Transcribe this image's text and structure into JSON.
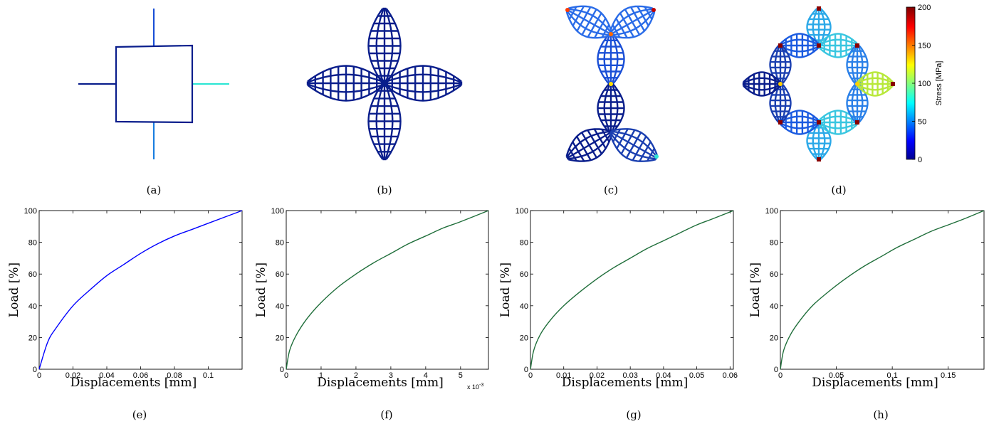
{
  "panel_labels": [
    "(a)",
    "(b)",
    "(c)",
    "(d)",
    "(e)",
    "(f)",
    "(g)",
    "(h)"
  ],
  "colorbar": {
    "label": "Stress [MPa]",
    "ticks": [
      "0",
      "50",
      "100",
      "150",
      "200"
    ],
    "colormap": [
      "#00008f",
      "#0000ff",
      "#00ffff",
      "#ffff00",
      "#ff0000",
      "#800000"
    ]
  },
  "colors": {
    "structure": "#0a1e8c",
    "curve_e": "#0000ff",
    "curve_fgh": "#1f6e3a"
  },
  "chart_data": [
    {
      "type": "line",
      "panel": "(e)",
      "xlabel": "Displacements [mm]",
      "ylabel": "Load [%]",
      "xlim": [
        0,
        0.12
      ],
      "ylim": [
        0,
        100
      ],
      "xticks": [
        0,
        0.02,
        0.04,
        0.06,
        0.08,
        0.1
      ],
      "xticklabels": [
        "0",
        "0.02",
        "0.04",
        "0.06",
        "0.08",
        "0.1"
      ],
      "yticks": [
        0,
        20,
        40,
        60,
        80,
        100
      ],
      "yticklabels": [
        "0",
        "20",
        "40",
        "60",
        "80",
        "100"
      ],
      "series": [
        {
          "values_x": [
            0,
            0.005,
            0.01,
            0.02,
            0.03,
            0.04,
            0.05,
            0.06,
            0.07,
            0.08,
            0.09,
            0.1,
            0.11,
            0.12
          ],
          "values_y": [
            0,
            17,
            26,
            40,
            50,
            59,
            66,
            73,
            79,
            84,
            88,
            92,
            96,
            100
          ]
        }
      ]
    },
    {
      "type": "line",
      "panel": "(f)",
      "xlabel": "Displacements [mm]",
      "ylabel": "Load [%]",
      "x_multiplier": "x 10",
      "x_multiplier_exp": "-3",
      "xlim": [
        0,
        5.8
      ],
      "ylim": [
        0,
        100
      ],
      "xticks": [
        0,
        1,
        2,
        3,
        4,
        5
      ],
      "xticklabels": [
        "0",
        "1",
        "2",
        "3",
        "4",
        "5"
      ],
      "yticks": [
        0,
        20,
        40,
        60,
        80,
        100
      ],
      "yticklabels": [
        "0",
        "20",
        "40",
        "60",
        "80",
        "100"
      ],
      "series": [
        {
          "values_x": [
            0,
            0.1,
            0.3,
            0.6,
            1.0,
            1.5,
            2.0,
            2.5,
            3.0,
            3.5,
            4.0,
            4.5,
            5.0,
            5.8
          ],
          "values_y": [
            0,
            12,
            22,
            32,
            42,
            52,
            60,
            67,
            73,
            79,
            84,
            89,
            93,
            100
          ]
        }
      ]
    },
    {
      "type": "line",
      "panel": "(g)",
      "xlabel": "Displacements [mm]",
      "ylabel": "Load [%]",
      "xlim": [
        0,
        0.061
      ],
      "ylim": [
        0,
        100
      ],
      "xticks": [
        0,
        0.01,
        0.02,
        0.03,
        0.04,
        0.05,
        0.06
      ],
      "xticklabels": [
        "0",
        "0.01",
        "0.02",
        "0.03",
        "0.04",
        "0.05",
        "0.06"
      ],
      "yticks": [
        0,
        20,
        40,
        60,
        80,
        100
      ],
      "yticklabels": [
        "0",
        "20",
        "40",
        "60",
        "80",
        "100"
      ],
      "series": [
        {
          "values_x": [
            0,
            0.001,
            0.003,
            0.006,
            0.01,
            0.015,
            0.02,
            0.025,
            0.03,
            0.035,
            0.04,
            0.045,
            0.05,
            0.055,
            0.061
          ],
          "values_y": [
            0,
            12,
            22,
            31,
            40,
            49,
            57,
            64,
            70,
            76,
            81,
            86,
            91,
            95,
            100
          ]
        }
      ]
    },
    {
      "type": "line",
      "panel": "(h)",
      "xlabel": "Displacements [mm]",
      "ylabel": "Load [%]",
      "xlim": [
        0,
        0.182
      ],
      "ylim": [
        0,
        100
      ],
      "xticks": [
        0,
        0.05,
        0.1,
        0.15
      ],
      "xticklabels": [
        "0",
        "0.05",
        "0.1",
        "0.15"
      ],
      "yticks": [
        0,
        20,
        40,
        60,
        80,
        100
      ],
      "yticklabels": [
        "0",
        "20",
        "40",
        "60",
        "80",
        "100"
      ],
      "series": [
        {
          "values_x": [
            0,
            0.003,
            0.01,
            0.02,
            0.03,
            0.045,
            0.06,
            0.075,
            0.09,
            0.105,
            0.12,
            0.135,
            0.15,
            0.165,
            0.182
          ],
          "values_y": [
            0,
            12,
            23,
            33,
            41,
            50,
            58,
            65,
            71,
            77,
            82,
            87,
            91,
            95,
            100
          ]
        }
      ]
    }
  ]
}
